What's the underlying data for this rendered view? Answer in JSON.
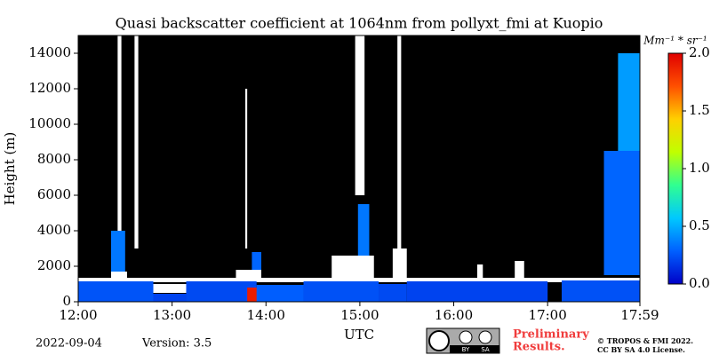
{
  "chart_data": {
    "type": "heatmap",
    "title": "Quasi backscatter coefficient at 1064nm from pollyxt_fmi at Kuopio",
    "x_label": "UTC",
    "y_label": "Height (m)",
    "xlim": [
      12,
      17.983
    ],
    "ylim": [
      0,
      15000
    ],
    "xticks": [
      {
        "value": 12,
        "label": "12:00"
      },
      {
        "value": 13,
        "label": "13:00"
      },
      {
        "value": 14,
        "label": "14:00"
      },
      {
        "value": 15,
        "label": "15:00"
      },
      {
        "value": 16,
        "label": "16:00"
      },
      {
        "value": 17,
        "label": "17:00"
      },
      {
        "value": 17.983,
        "label": "17:59"
      }
    ],
    "yticks": [
      0,
      2000,
      4000,
      6000,
      8000,
      10000,
      12000,
      14000
    ],
    "colorbar_label": "Mm⁻¹ * sr⁻¹",
    "clim": [
      0,
      2
    ],
    "cticks": [
      {
        "value": 0,
        "label": "0.0"
      },
      {
        "value": 0.5,
        "label": "0.5"
      },
      {
        "value": 1,
        "label": "1.0"
      },
      {
        "value": 1.5,
        "label": "1.5"
      },
      {
        "value": 2,
        "label": "2.0"
      }
    ],
    "colormap": [
      "#0000c8",
      "#0060ff",
      "#00c8ff",
      "#30ff90",
      "#c0ff00",
      "#ffd000",
      "#ff5000",
      "#e00000"
    ],
    "background": "#000000",
    "masked_color": "#ffffff",
    "masked": [
      [
        12.0,
        17.983,
        1100,
        1350
      ],
      [
        12.35,
        12.52,
        1200,
        1700
      ],
      [
        13.68,
        13.95,
        1200,
        1800
      ],
      [
        14.7,
        15.15,
        1200,
        2600
      ],
      [
        15.35,
        15.5,
        1200,
        3000
      ],
      [
        16.25,
        16.31,
        1200,
        2100
      ],
      [
        16.65,
        16.75,
        1200,
        2300
      ],
      [
        12.8,
        13.2,
        500,
        1000
      ],
      [
        12.42,
        12.46,
        2500,
        15000
      ],
      [
        12.6,
        12.64,
        3000,
        15000
      ],
      [
        14.95,
        15.05,
        6000,
        15000
      ],
      [
        15.4,
        15.44,
        3000,
        15000
      ],
      [
        13.78,
        13.8,
        3000,
        12000
      ]
    ],
    "cells": [
      {
        "x": [
          12.0,
          12.8
        ],
        "y": [
          0,
          1150
        ],
        "value": 0.25
      },
      {
        "x": [
          12.8,
          13.15
        ],
        "y": [
          0,
          450
        ],
        "value": 0.2
      },
      {
        "x": [
          13.15,
          13.9
        ],
        "y": [
          0,
          1150
        ],
        "value": 0.22
      },
      {
        "x": [
          13.8,
          13.92
        ],
        "y": [
          0,
          800
        ],
        "value": 1.9
      },
      {
        "x": [
          13.9,
          14.4
        ],
        "y": [
          0,
          950
        ],
        "value": 0.28
      },
      {
        "x": [
          14.4,
          15.2
        ],
        "y": [
          0,
          1150
        ],
        "value": 0.24
      },
      {
        "x": [
          15.2,
          15.5
        ],
        "y": [
          0,
          1000
        ],
        "value": 0.22
      },
      {
        "x": [
          15.5,
          17.0
        ],
        "y": [
          0,
          1150
        ],
        "value": 0.2
      },
      {
        "x": [
          17.15,
          17.983
        ],
        "y": [
          0,
          1200
        ],
        "value": 0.24
      },
      {
        "x": [
          12.35,
          12.5
        ],
        "y": [
          1700,
          4000
        ],
        "value": 0.35
      },
      {
        "x": [
          13.85,
          13.95
        ],
        "y": [
          1800,
          2800
        ],
        "value": 0.3
      },
      {
        "x": [
          14.98,
          15.1
        ],
        "y": [
          2600,
          5500
        ],
        "value": 0.35
      },
      {
        "x": [
          17.6,
          17.983
        ],
        "y": [
          1500,
          8500
        ],
        "value": 0.3
      },
      {
        "x": [
          17.75,
          17.983
        ],
        "y": [
          8500,
          14000
        ],
        "value": 0.45
      }
    ],
    "date": "2022-09-04",
    "version": "Version: 3.5",
    "preliminary": [
      "Preliminary",
      "Results."
    ],
    "copyright": [
      "© TROPOS & FMI 2022.",
      "CC BY SA 4.0 License."
    ],
    "badge": [
      "BY",
      "SA"
    ]
  }
}
